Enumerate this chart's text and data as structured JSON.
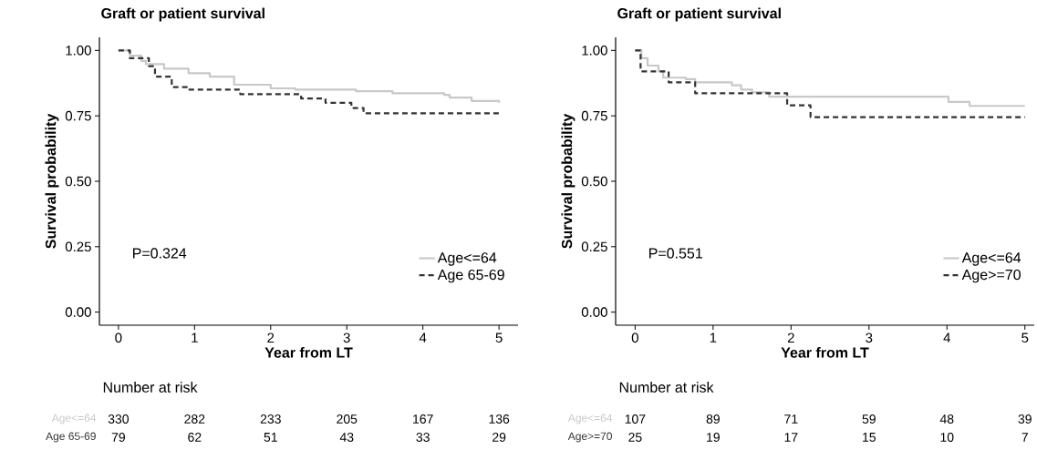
{
  "chart_data": [
    {
      "type": "step",
      "title": "Graft or patient survival",
      "xlabel": "Year from LT",
      "ylabel": "Survival probability",
      "xlim": [
        -0.25,
        5.25
      ],
      "ylim": [
        -0.05,
        1.05
      ],
      "xticks": [
        0,
        1,
        2,
        3,
        4,
        5
      ],
      "yticks": [
        {
          "value": 0,
          "label": "0.00"
        },
        {
          "value": 0.25,
          "label": "0.25"
        },
        {
          "value": 0.5,
          "label": "0.50"
        },
        {
          "value": 0.75,
          "label": "0.75"
        },
        {
          "value": 1,
          "label": "1.00"
        }
      ],
      "legend": "bottom right",
      "annotations": [
        "P=0.324"
      ],
      "series": [
        {
          "name": "Age<=64",
          "color": "#c8c8c8",
          "line_style": "solid",
          "x": [
            0,
            0.15,
            0.3,
            0.36,
            0.6,
            0.92,
            1.2,
            1.52,
            2.0,
            2.32,
            3.12,
            3.6,
            4.28,
            4.35,
            4.64,
            5.0
          ],
          "values": [
            1.0,
            0.98,
            0.96,
            0.948,
            0.93,
            0.913,
            0.9,
            0.869,
            0.855,
            0.85,
            0.844,
            0.836,
            0.83,
            0.82,
            0.807,
            0.8
          ]
        },
        {
          "name": "Age 65-69",
          "color": "#333333",
          "line_style": "dashed",
          "x": [
            0,
            0.15,
            0.4,
            0.48,
            0.7,
            0.92,
            1.6,
            2.4,
            2.72,
            3.06,
            3.22,
            5.0
          ],
          "values": [
            1.0,
            0.97,
            0.94,
            0.9,
            0.86,
            0.85,
            0.833,
            0.816,
            0.8,
            0.78,
            0.76,
            0.76
          ]
        }
      ]
    },
    {
      "type": "other",
      "title": "Number at risk",
      "annotations": [
        "Age<=64",
        "330",
        "282",
        "233",
        "205",
        "167",
        "136",
        "Age 65-69",
        "79",
        "62",
        "51",
        "43",
        "33",
        "29"
      ]
    },
    {
      "type": "step",
      "title": "Graft or patient survival",
      "xlabel": "Year from LT",
      "ylabel": "Survival probability",
      "xlim": [
        -0.25,
        5.12
      ],
      "ylim": [
        -0.05,
        1.05
      ],
      "xticks": [
        0,
        1,
        2,
        3,
        4,
        5
      ],
      "yticks": [
        {
          "value": 0,
          "label": "0.00"
        },
        {
          "value": 0.25,
          "label": "0.25"
        },
        {
          "value": 0.5,
          "label": "0.50"
        },
        {
          "value": 0.75,
          "label": "0.75"
        },
        {
          "value": 1,
          "label": "1.00"
        }
      ],
      "legend": "bottom right",
      "annotations": [
        "P=0.551"
      ],
      "series": [
        {
          "name": "Age<=64",
          "color": "#c8c8c8",
          "line_style": "solid",
          "x": [
            0,
            0.08,
            0.16,
            0.3,
            0.36,
            0.65,
            0.77,
            1.24,
            1.36,
            1.5,
            1.72,
            4.02,
            4.29,
            5.0
          ],
          "values": [
            1.0,
            0.97,
            0.942,
            0.92,
            0.896,
            0.89,
            0.878,
            0.867,
            0.85,
            0.84,
            0.823,
            0.803,
            0.788,
            0.788
          ]
        },
        {
          "name": "Age>=70",
          "color": "#333333",
          "line_style": "dashed",
          "x": [
            0,
            0.07,
            0.43,
            0.77,
            1.95,
            2.25,
            5.0
          ],
          "values": [
            1.0,
            0.92,
            0.878,
            0.836,
            0.79,
            0.745,
            0.745
          ]
        }
      ]
    },
    {
      "type": "other",
      "title": "Number at risk",
      "annotations": [
        "Age<=64",
        "107",
        "89",
        "71",
        "59",
        "48",
        "39",
        "Age>=70",
        "25",
        "19",
        "17",
        "15",
        "10",
        "7"
      ]
    }
  ]
}
